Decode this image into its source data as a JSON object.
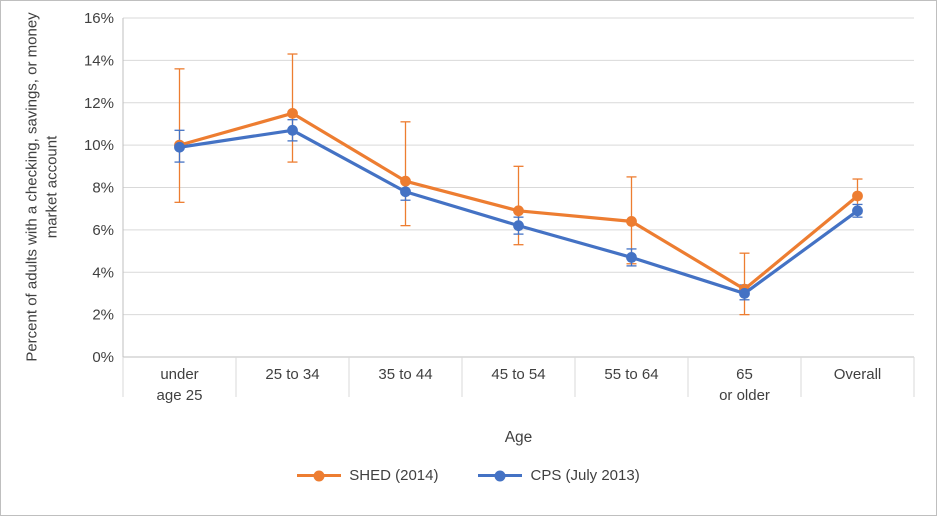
{
  "chart_data": {
    "type": "line",
    "title": "",
    "xlabel": "Age",
    "ylabel": "Percent of adults with a checking, savings, or money market account",
    "categories": [
      [
        "under",
        "age 25"
      ],
      [
        "25 to 34"
      ],
      [
        "35 to 44"
      ],
      [
        "45 to 54"
      ],
      [
        "55 to 64"
      ],
      [
        "65",
        "or older"
      ],
      [
        "Overall"
      ]
    ],
    "y_axis": {
      "min": 0,
      "max": 16,
      "step": 2,
      "tick_suffix": "%"
    },
    "grid": true,
    "legend_position": "bottom",
    "series": [
      {
        "name": "SHED (2014)",
        "color": "#ED7D31",
        "values": [
          10.0,
          11.5,
          8.3,
          6.9,
          6.4,
          3.2,
          7.6
        ],
        "error_low": [
          7.3,
          9.2,
          6.2,
          5.3,
          4.4,
          2.0,
          6.8
        ],
        "error_high": [
          13.6,
          14.3,
          11.1,
          9.0,
          8.5,
          4.9,
          8.4
        ]
      },
      {
        "name": "CPS (July 2013)",
        "color": "#4472C4",
        "values": [
          9.9,
          10.7,
          7.8,
          6.2,
          4.7,
          3.0,
          6.9
        ],
        "error_low": [
          9.2,
          10.2,
          7.4,
          5.8,
          4.3,
          2.7,
          6.6
        ],
        "error_high": [
          10.7,
          11.2,
          8.3,
          6.6,
          5.1,
          3.4,
          7.2
        ]
      }
    ]
  },
  "styles": {
    "gridline_color": "#D9D9D9",
    "axis_color": "#BFBFBF",
    "text_color": "#404040"
  }
}
